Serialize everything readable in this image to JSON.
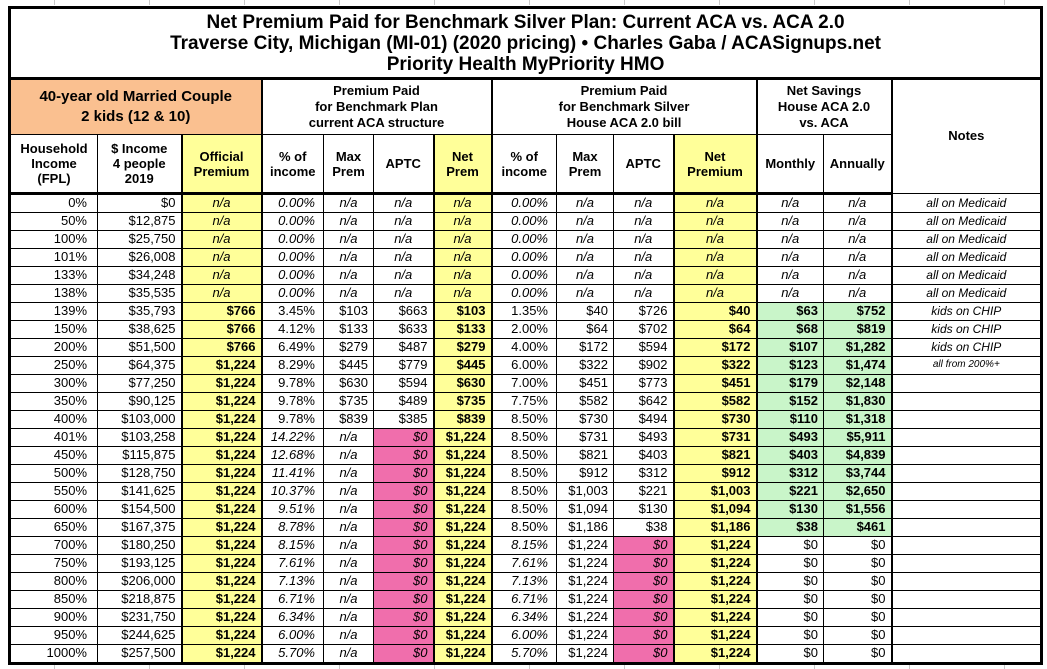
{
  "page": {
    "title_line1": "Net Premium Paid for Benchmark Silver Plan: Current ACA vs. ACA 2.0",
    "title_line2": "Traverse City, Michigan (MI-01) (2020 pricing) • Charles Gaba / ACASignups.net",
    "title_line3": "Priority Health MyPriority HMO"
  },
  "header": {
    "demographic": "40-year old Married Couple\n2 kids (12 & 10)",
    "group_current_aca": "Premium Paid\nfor Benchmark Plan\ncurrent ACA structure",
    "group_aca2": "Premium Paid\nfor Benchmark Silver\nHouse ACA 2.0 bill",
    "group_savings": "Net Savings\nHouse ACA 2.0\nvs. ACA",
    "notes_label": "Notes",
    "columns": [
      "Household\nIncome\n(FPL)",
      "$ Income\n4 people\n2019",
      "Official\nPremium",
      "% of\nincome",
      "Max\nPrem",
      "APTC",
      "Net\nPrem",
      "% of\nincome",
      "Max\nPrem",
      "APTC",
      "Net\nPremium",
      "Monthly",
      "Annually"
    ]
  },
  "colors": {
    "demographic_bg": "#FAC090",
    "highlight_yellow": "#FFFF99",
    "aptc_zero_pink": "#F06EAC",
    "savings_green": "#C9F5C9"
  },
  "chart_data": {
    "type": "table",
    "title": "Net Premium Paid for Benchmark Silver Plan: Current ACA vs. ACA 2.0",
    "subtitle": "Traverse City, Michigan (MI-01) (2020 pricing) • Charles Gaba / ACASignups.net",
    "plan": "Priority Health MyPriority HMO",
    "columns": [
      "Household Income (FPL)",
      "$ Income 4 people 2019",
      "Official Premium",
      "% of income (current ACA)",
      "Max Prem (current ACA)",
      "APTC (current ACA)",
      "Net Prem (current ACA)",
      "% of income (ACA 2.0)",
      "Max Prem (ACA 2.0)",
      "APTC (ACA 2.0)",
      "Net Premium (ACA 2.0)",
      "Net Savings Monthly",
      "Net Savings Annually",
      "Notes"
    ],
    "rows": [
      [
        "0%",
        "$0",
        "n/a",
        "0.00%",
        "n/a",
        "n/a",
        "n/a",
        "0.00%",
        "n/a",
        "n/a",
        "n/a",
        "n/a",
        "n/a",
        "all on Medicaid"
      ],
      [
        "50%",
        "$12,875",
        "n/a",
        "0.00%",
        "n/a",
        "n/a",
        "n/a",
        "0.00%",
        "n/a",
        "n/a",
        "n/a",
        "n/a",
        "n/a",
        "all on Medicaid"
      ],
      [
        "100%",
        "$25,750",
        "n/a",
        "0.00%",
        "n/a",
        "n/a",
        "n/a",
        "0.00%",
        "n/a",
        "n/a",
        "n/a",
        "n/a",
        "n/a",
        "all on Medicaid"
      ],
      [
        "101%",
        "$26,008",
        "n/a",
        "0.00%",
        "n/a",
        "n/a",
        "n/a",
        "0.00%",
        "n/a",
        "n/a",
        "n/a",
        "n/a",
        "n/a",
        "all on Medicaid"
      ],
      [
        "133%",
        "$34,248",
        "n/a",
        "0.00%",
        "n/a",
        "n/a",
        "n/a",
        "0.00%",
        "n/a",
        "n/a",
        "n/a",
        "n/a",
        "n/a",
        "all on Medicaid"
      ],
      [
        "138%",
        "$35,535",
        "n/a",
        "0.00%",
        "n/a",
        "n/a",
        "n/a",
        "0.00%",
        "n/a",
        "n/a",
        "n/a",
        "n/a",
        "n/a",
        "all on Medicaid"
      ],
      [
        "139%",
        "$35,793",
        "$766",
        "3.45%",
        "$103",
        "$663",
        "$103",
        "1.35%",
        "$40",
        "$726",
        "$40",
        "$63",
        "$752",
        "kids on CHIP"
      ],
      [
        "150%",
        "$38,625",
        "$766",
        "4.12%",
        "$133",
        "$633",
        "$133",
        "2.00%",
        "$64",
        "$702",
        "$64",
        "$68",
        "$819",
        "kids on CHIP"
      ],
      [
        "200%",
        "$51,500",
        "$766",
        "6.49%",
        "$279",
        "$487",
        "$279",
        "4.00%",
        "$172",
        "$594",
        "$172",
        "$107",
        "$1,282",
        "kids on CHIP"
      ],
      [
        "250%",
        "$64,375",
        "$1,224",
        "8.29%",
        "$445",
        "$779",
        "$445",
        "6.00%",
        "$322",
        "$902",
        "$322",
        "$123",
        "$1,474",
        "all from 200%+"
      ],
      [
        "300%",
        "$77,250",
        "$1,224",
        "9.78%",
        "$630",
        "$594",
        "$630",
        "7.00%",
        "$451",
        "$773",
        "$451",
        "$179",
        "$2,148",
        ""
      ],
      [
        "350%",
        "$90,125",
        "$1,224",
        "9.78%",
        "$735",
        "$489",
        "$735",
        "7.75%",
        "$582",
        "$642",
        "$582",
        "$152",
        "$1,830",
        ""
      ],
      [
        "400%",
        "$103,000",
        "$1,224",
        "9.78%",
        "$839",
        "$385",
        "$839",
        "8.50%",
        "$730",
        "$494",
        "$730",
        "$110",
        "$1,318",
        ""
      ],
      [
        "401%",
        "$103,258",
        "$1,224",
        "14.22%",
        "n/a",
        "$0",
        "$1,224",
        "8.50%",
        "$731",
        "$493",
        "$731",
        "$493",
        "$5,911",
        ""
      ],
      [
        "450%",
        "$115,875",
        "$1,224",
        "12.68%",
        "n/a",
        "$0",
        "$1,224",
        "8.50%",
        "$821",
        "$403",
        "$821",
        "$403",
        "$4,839",
        ""
      ],
      [
        "500%",
        "$128,750",
        "$1,224",
        "11.41%",
        "n/a",
        "$0",
        "$1,224",
        "8.50%",
        "$912",
        "$312",
        "$912",
        "$312",
        "$3,744",
        ""
      ],
      [
        "550%",
        "$141,625",
        "$1,224",
        "10.37%",
        "n/a",
        "$0",
        "$1,224",
        "8.50%",
        "$1,003",
        "$221",
        "$1,003",
        "$221",
        "$2,650",
        ""
      ],
      [
        "600%",
        "$154,500",
        "$1,224",
        "9.51%",
        "n/a",
        "$0",
        "$1,224",
        "8.50%",
        "$1,094",
        "$130",
        "$1,094",
        "$130",
        "$1,556",
        ""
      ],
      [
        "650%",
        "$167,375",
        "$1,224",
        "8.78%",
        "n/a",
        "$0",
        "$1,224",
        "8.50%",
        "$1,186",
        "$38",
        "$1,186",
        "$38",
        "$461",
        ""
      ],
      [
        "700%",
        "$180,250",
        "$1,224",
        "8.15%",
        "n/a",
        "$0",
        "$1,224",
        "8.15%",
        "$1,224",
        "$0",
        "$1,224",
        "$0",
        "$0",
        ""
      ],
      [
        "750%",
        "$193,125",
        "$1,224",
        "7.61%",
        "n/a",
        "$0",
        "$1,224",
        "7.61%",
        "$1,224",
        "$0",
        "$1,224",
        "$0",
        "$0",
        ""
      ],
      [
        "800%",
        "$206,000",
        "$1,224",
        "7.13%",
        "n/a",
        "$0",
        "$1,224",
        "7.13%",
        "$1,224",
        "$0",
        "$1,224",
        "$0",
        "$0",
        ""
      ],
      [
        "850%",
        "$218,875",
        "$1,224",
        "6.71%",
        "n/a",
        "$0",
        "$1,224",
        "6.71%",
        "$1,224",
        "$0",
        "$1,224",
        "$0",
        "$0",
        ""
      ],
      [
        "900%",
        "$231,750",
        "$1,224",
        "6.34%",
        "n/a",
        "$0",
        "$1,224",
        "6.34%",
        "$1,224",
        "$0",
        "$1,224",
        "$0",
        "$0",
        ""
      ],
      [
        "950%",
        "$244,625",
        "$1,224",
        "6.00%",
        "n/a",
        "$0",
        "$1,224",
        "6.00%",
        "$1,224",
        "$0",
        "$1,224",
        "$0",
        "$0",
        ""
      ],
      [
        "1000%",
        "$257,500",
        "$1,224",
        "5.70%",
        "n/a",
        "$0",
        "$1,224",
        "5.70%",
        "$1,224",
        "$0",
        "$1,224",
        "$0",
        "$0",
        ""
      ]
    ]
  }
}
